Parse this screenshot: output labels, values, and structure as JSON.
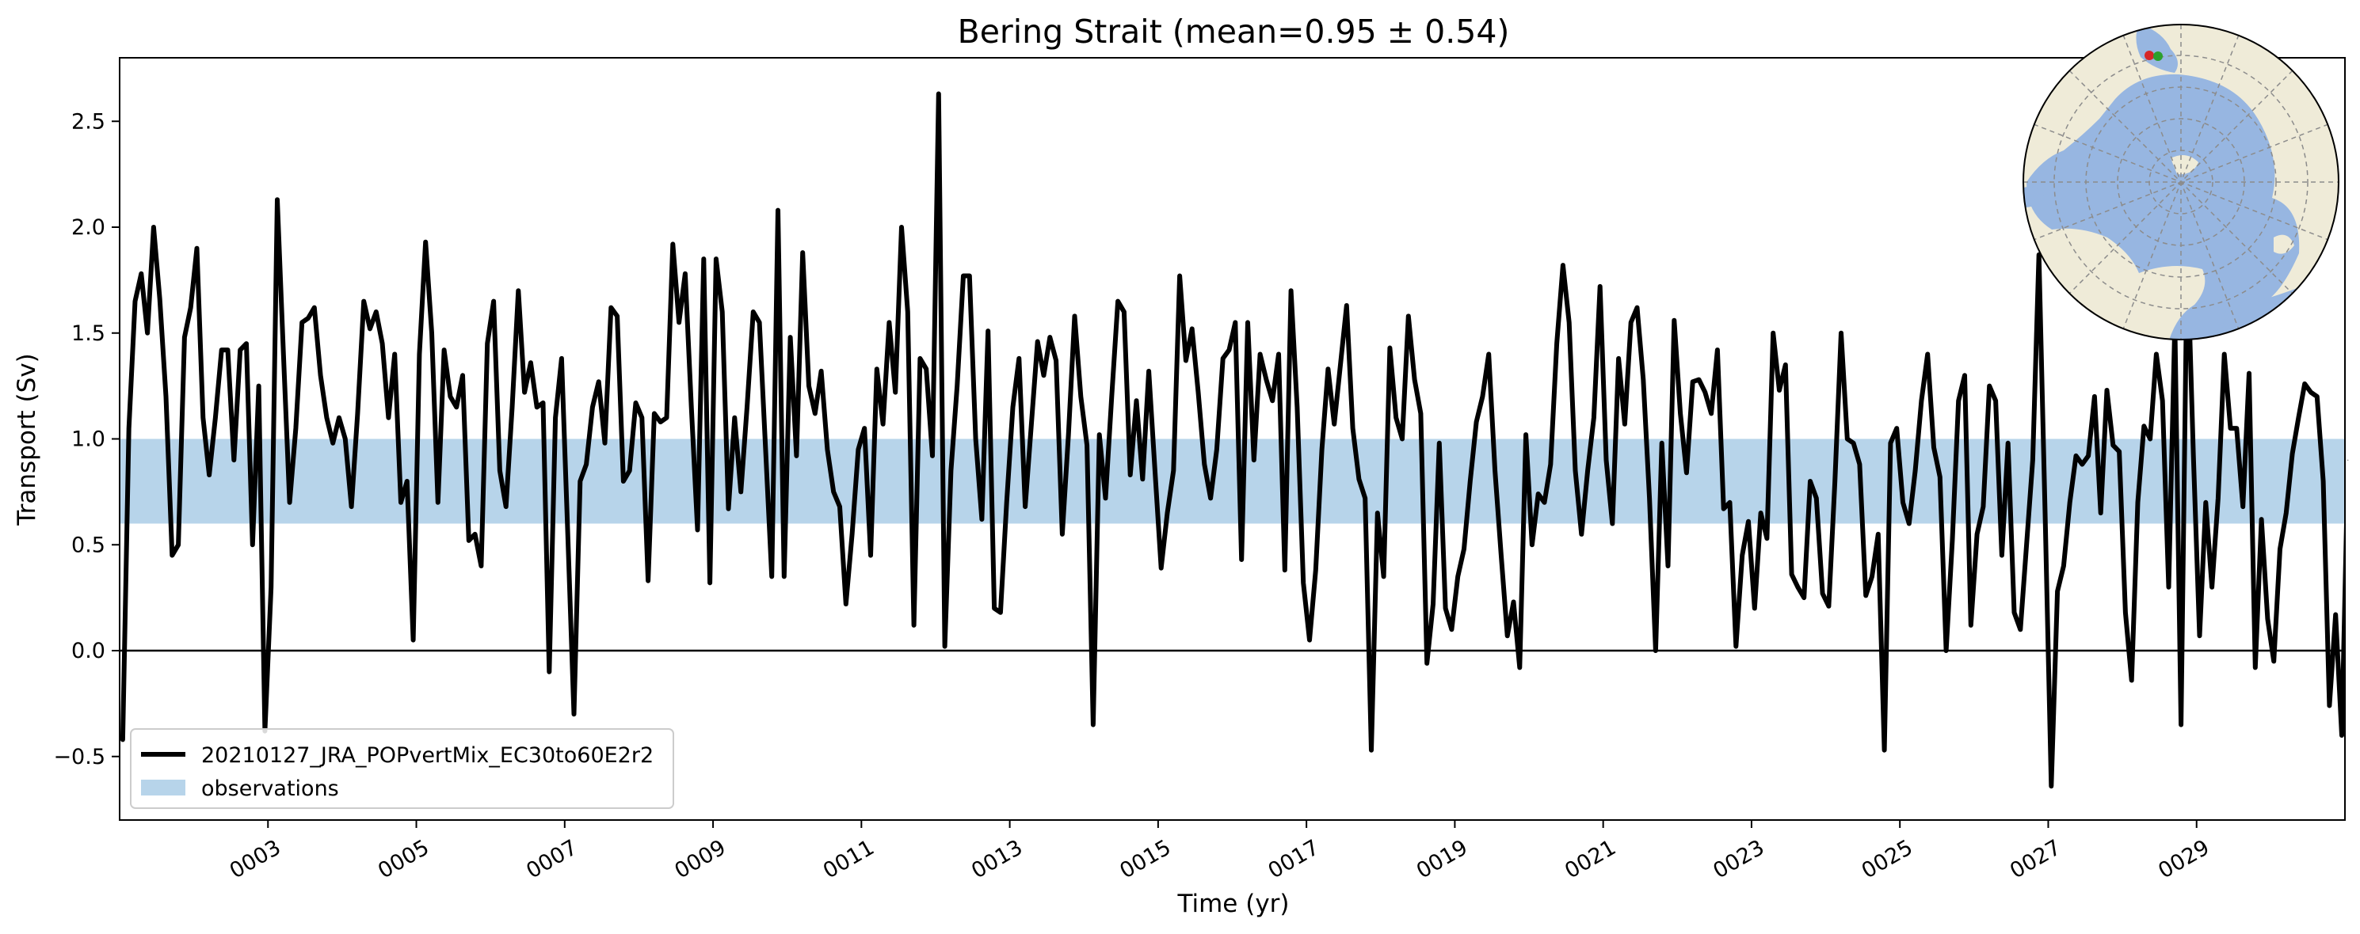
{
  "chart_data": {
    "type": "line",
    "title": "Bering Strait (mean=0.95 ± 0.54)",
    "xlabel": "Time (yr)",
    "ylabel": "Transport (Sv)",
    "xlim": [
      1,
      31
    ],
    "ylim": [
      -0.8,
      2.8
    ],
    "x_ticks": [
      3,
      5,
      7,
      9,
      11,
      13,
      15,
      17,
      19,
      21,
      23,
      25,
      27,
      29
    ],
    "x_tick_labels": [
      "0003",
      "0005",
      "0007",
      "0009",
      "0011",
      "0013",
      "0015",
      "0017",
      "0019",
      "0021",
      "0023",
      "0025",
      "0027",
      "0029"
    ],
    "y_ticks": [
      -0.5,
      0.0,
      0.5,
      1.0,
      1.5,
      2.0,
      2.5
    ],
    "y_tick_labels": [
      "−0.5",
      "0.0",
      "0.5",
      "1.0",
      "1.5",
      "2.0",
      "2.5"
    ],
    "reference_line": 0.0,
    "observation_band": {
      "name": "observations",
      "ymin": 0.6,
      "ymax": 1.0,
      "color": "#b7d4ea"
    },
    "legend_position": "lower-left",
    "grid": false,
    "inset": "north polar map (ocean #97b6e1, land #efebd8) with red and green markers at the strait",
    "series": [
      {
        "name": "20210127_JRA_POPvertMix_EC30to60E2r2",
        "color": "#000000",
        "x_start": 1.0417,
        "x_step": 0.08333,
        "values": [
          -0.42,
          1.05,
          1.65,
          1.78,
          1.5,
          2.0,
          1.66,
          1.2,
          0.45,
          0.5,
          1.48,
          1.62,
          1.9,
          1.1,
          0.83,
          1.1,
          1.42,
          1.42,
          0.9,
          1.42,
          1.45,
          0.5,
          1.25,
          -0.38,
          0.3,
          2.13,
          1.4,
          0.7,
          1.05,
          1.55,
          1.57,
          1.62,
          1.3,
          1.1,
          0.98,
          1.1,
          1.0,
          0.68,
          1.12,
          1.65,
          1.52,
          1.6,
          1.45,
          1.1,
          1.4,
          0.7,
          0.8,
          0.05,
          1.4,
          1.93,
          1.5,
          0.7,
          1.42,
          1.2,
          1.15,
          1.3,
          0.52,
          0.55,
          0.4,
          1.45,
          1.65,
          0.85,
          0.68,
          1.15,
          1.7,
          1.22,
          1.36,
          1.15,
          1.17,
          -0.1,
          1.1,
          1.38,
          0.55,
          -0.3,
          0.8,
          0.88,
          1.15,
          1.27,
          0.98,
          1.62,
          1.58,
          0.8,
          0.85,
          1.17,
          1.1,
          0.33,
          1.12,
          1.08,
          1.1,
          1.92,
          1.55,
          1.78,
          1.15,
          0.57,
          1.85,
          0.32,
          1.85,
          1.6,
          0.67,
          1.1,
          0.75,
          1.15,
          1.6,
          1.55,
          0.95,
          0.35,
          2.08,
          0.35,
          1.48,
          0.92,
          1.88,
          1.25,
          1.12,
          1.32,
          0.95,
          0.75,
          0.68,
          0.22,
          0.55,
          0.95,
          1.05,
          0.45,
          1.33,
          1.07,
          1.55,
          1.22,
          2.0,
          1.6,
          0.12,
          1.38,
          1.33,
          0.92,
          2.63,
          0.02,
          0.85,
          1.25,
          1.77,
          1.77,
          1.0,
          0.62,
          1.51,
          0.2,
          0.18,
          0.7,
          1.15,
          1.38,
          0.68,
          1.07,
          1.46,
          1.3,
          1.48,
          1.37,
          0.55,
          1.02,
          1.58,
          1.2,
          0.97,
          -0.35,
          1.02,
          0.72,
          1.2,
          1.65,
          1.6,
          0.83,
          1.18,
          0.81,
          1.32,
          0.85,
          0.39,
          0.65,
          0.85,
          1.77,
          1.37,
          1.52,
          1.22,
          0.88,
          0.72,
          0.95,
          1.38,
          1.42,
          1.55,
          0.43,
          1.55,
          0.9,
          1.4,
          1.28,
          1.18,
          1.4,
          0.38,
          1.7,
          1.15,
          0.32,
          0.05,
          0.38,
          0.95,
          1.33,
          1.07,
          1.35,
          1.63,
          1.05,
          0.81,
          0.72,
          -0.47,
          0.65,
          0.35,
          1.43,
          1.1,
          1.0,
          1.58,
          1.28,
          1.12,
          -0.06,
          0.22,
          0.98,
          0.2,
          0.1,
          0.35,
          0.48,
          0.8,
          1.08,
          1.2,
          1.4,
          0.85,
          0.45,
          0.07,
          0.23,
          -0.08,
          1.02,
          0.5,
          0.74,
          0.7,
          0.88,
          1.45,
          1.82,
          1.55,
          0.85,
          0.55,
          0.85,
          1.1,
          1.72,
          0.9,
          0.6,
          1.38,
          1.07,
          1.55,
          1.62,
          1.28,
          0.72,
          0.0,
          0.98,
          0.4,
          1.56,
          1.12,
          0.84,
          1.27,
          1.28,
          1.22,
          1.12,
          1.42,
          0.67,
          0.7,
          0.02,
          0.45,
          0.61,
          0.2,
          0.65,
          0.53,
          1.5,
          1.23,
          1.35,
          0.36,
          0.3,
          0.25,
          0.8,
          0.72,
          0.27,
          0.21,
          0.8,
          1.5,
          1.0,
          0.98,
          0.88,
          0.26,
          0.35,
          0.55,
          -0.47,
          0.98,
          1.05,
          0.7,
          0.6,
          0.85,
          1.18,
          1.4,
          0.96,
          0.82,
          0.0,
          0.52,
          1.18,
          1.3,
          0.12,
          0.55,
          0.68,
          1.25,
          1.18,
          0.45,
          0.98,
          0.18,
          0.1,
          0.5,
          0.9,
          1.87,
          0.65,
          -0.64,
          0.28,
          0.4,
          0.7,
          0.92,
          0.88,
          0.92,
          1.2,
          0.65,
          1.23,
          0.97,
          0.94,
          0.18,
          -0.14,
          0.7,
          1.06,
          1.0,
          1.4,
          1.18,
          0.3,
          1.55,
          -0.35,
          1.9,
          0.92,
          0.07,
          0.7,
          0.3,
          0.72,
          1.4,
          1.05,
          1.05,
          0.68,
          1.31,
          -0.08,
          0.62,
          0.15,
          -0.05,
          0.48,
          0.65,
          0.93,
          1.1,
          1.26,
          1.22,
          1.2,
          0.8,
          -0.26,
          0.17,
          -0.4,
          0.9
        ]
      }
    ]
  },
  "inset_map": {
    "ocean_color": "#97b6e1",
    "land_color": "#efebd8",
    "markers": [
      {
        "color": "#d62728"
      },
      {
        "color": "#2ca02c"
      }
    ]
  }
}
